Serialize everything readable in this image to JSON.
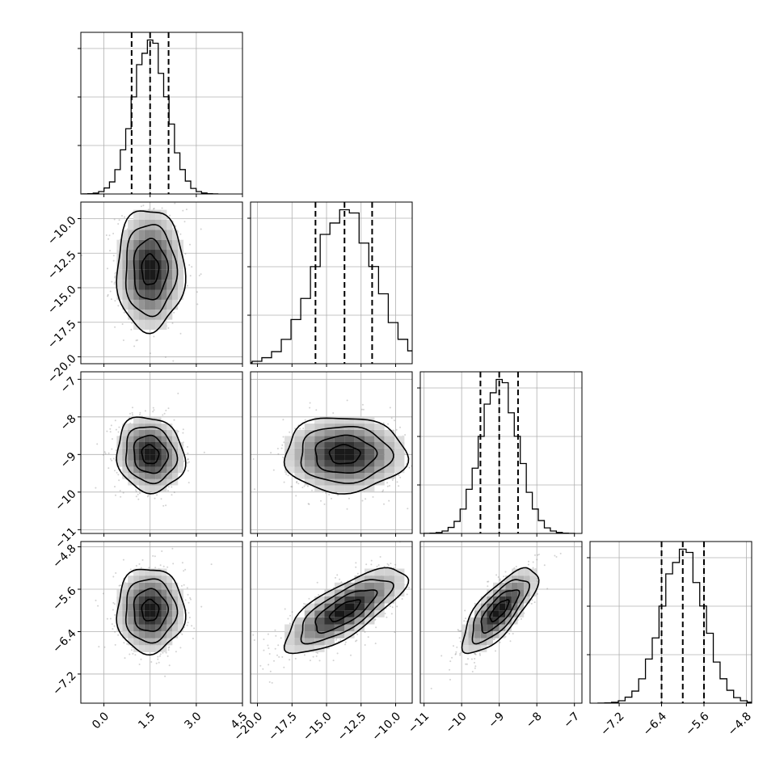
{
  "chart_data": {
    "type": "corner",
    "grid": true,
    "parameters": [
      {
        "range": [
          -0.75,
          4.5
        ],
        "ticks": [
          "0.0",
          "1.5",
          "3.0",
          "4.5"
        ],
        "tick_values": [
          0.0,
          1.5,
          3.0,
          4.5
        ],
        "mean": 1.5,
        "sd": 0.55,
        "quantiles": [
          0.9,
          1.5,
          2.1
        ],
        "hist_peak": 0.95
      },
      {
        "range": [
          -20.5,
          -8.8
        ],
        "ticks": [
          "−20.0",
          "−17.5",
          "−15.0",
          "−12.5",
          "−10.0"
        ],
        "tick_values": [
          -20.0,
          -17.5,
          -15.0,
          -12.5,
          -10.0
        ],
        "mean": -13.7,
        "sd": 2.2,
        "quantiles": [
          -15.8,
          -13.7,
          -11.7
        ],
        "hist_peak": 0.95
      },
      {
        "range": [
          -11.1,
          -6.8
        ],
        "ticks": [
          "−11",
          "−10",
          "−9",
          "−8",
          "−7"
        ],
        "tick_values": [
          -11,
          -10,
          -9,
          -8,
          -7
        ],
        "mean": -9.0,
        "sd": 0.5,
        "quantiles": [
          -9.5,
          -9.0,
          -8.5
        ],
        "hist_peak": 0.95
      },
      {
        "range": [
          -7.75,
          -4.7
        ],
        "ticks": [
          "−7.2",
          "−6.4",
          "−5.6",
          "−4.8"
        ],
        "tick_values": [
          -7.2,
          -6.4,
          -5.6,
          -4.8
        ],
        "mean": -6.0,
        "sd": 0.4,
        "quantiles": [
          -6.4,
          -6.0,
          -5.6
        ],
        "hist_peak": 0.95
      }
    ],
    "correlations": {
      "1-0": 0.0,
      "2-0": -0.1,
      "2-1": 0.0,
      "3-0": 0.0,
      "3-1": 0.75,
      "3-2": 0.75
    },
    "contour_levels_sigma": [
      0.5,
      1.0,
      1.5,
      2.0
    ]
  }
}
